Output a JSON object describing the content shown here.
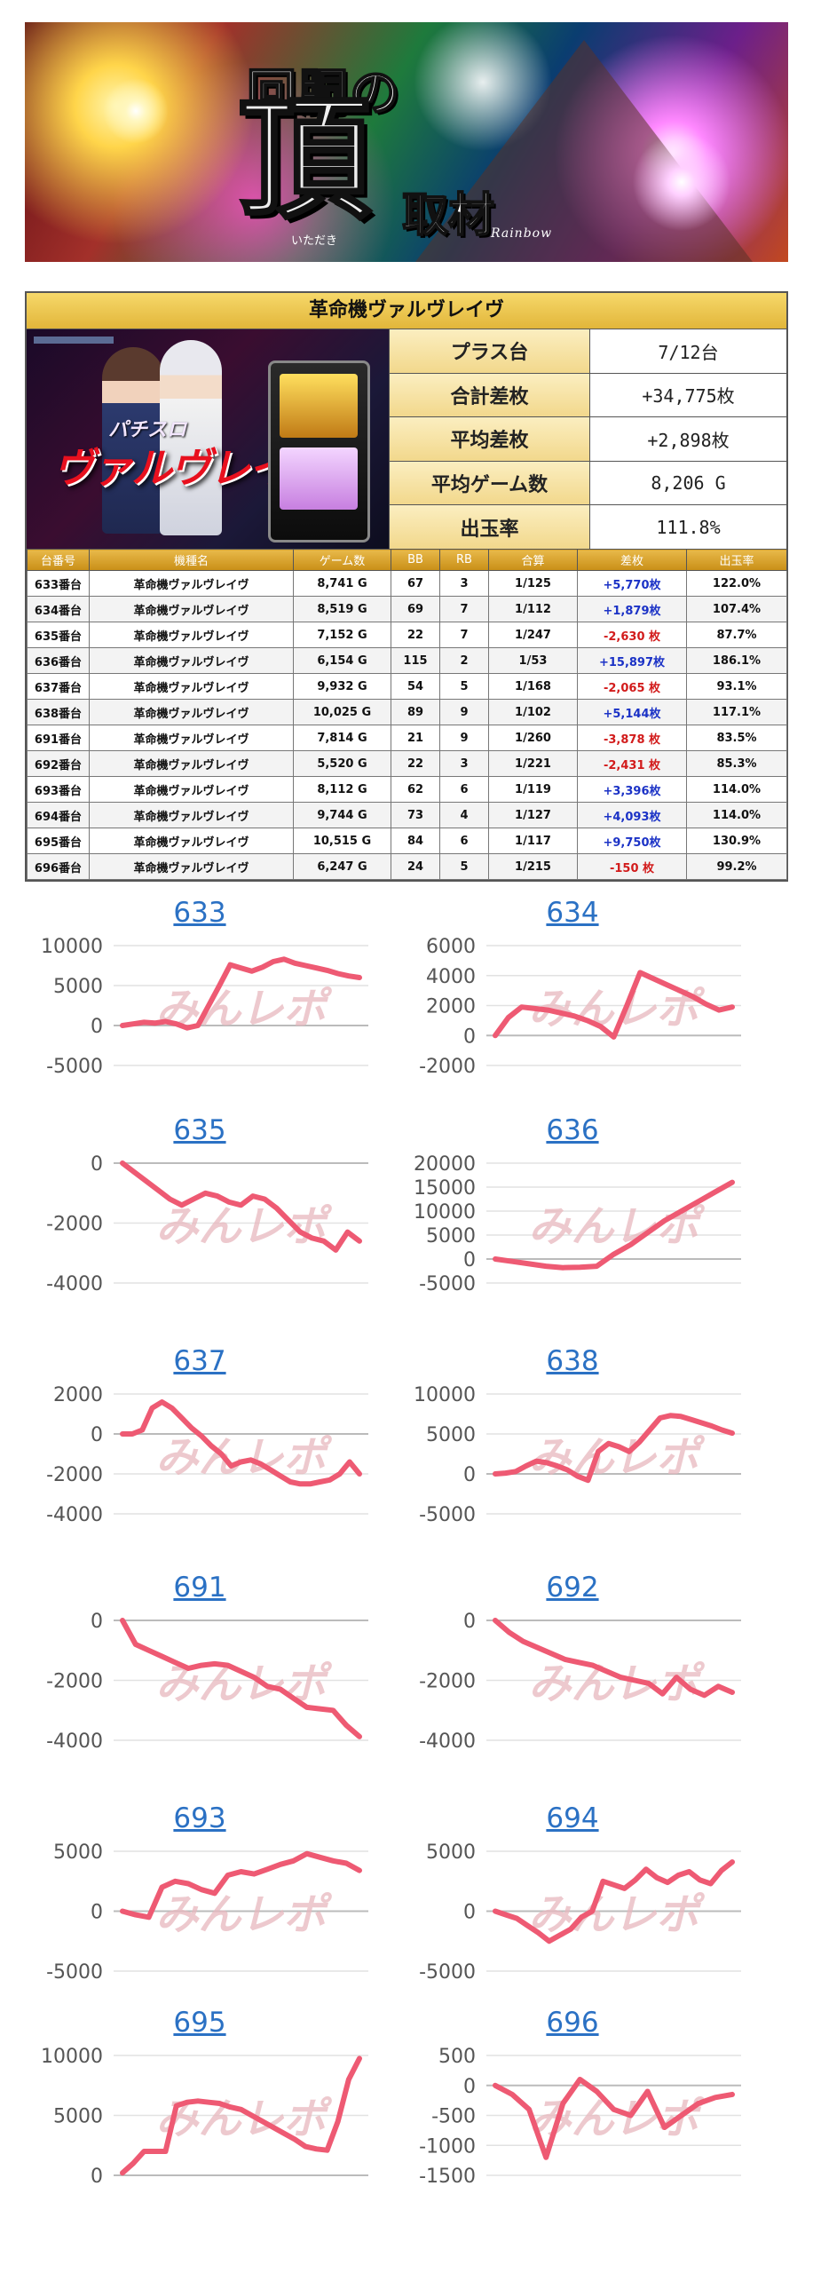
{
  "banner": {
    "line1": "回胴の",
    "line2": "頂",
    "line3": "取材",
    "ruby": "いただき",
    "rainbow": "Rainbow"
  },
  "summary": {
    "machine": "革命機ヴァルヴレイヴ",
    "promo_small": "パチスロ",
    "promo_big": "ヴァルヴレイヴ",
    "stats": [
      {
        "label": "プラス台",
        "value": "7/12台"
      },
      {
        "label": "合計差枚",
        "value": "+34,775枚"
      },
      {
        "label": "平均差枚",
        "value": "+2,898枚"
      },
      {
        "label": "平均ゲーム数",
        "value": "8,206 G"
      },
      {
        "label": "出玉率",
        "value": "111.8%"
      }
    ]
  },
  "table": {
    "headers": [
      "台番号",
      "機種名",
      "ゲーム数",
      "BB",
      "RB",
      "合算",
      "差枚",
      "出玉率"
    ],
    "rows": [
      {
        "no": "633番台",
        "name": "革命機ヴァルヴレイヴ",
        "games": "8,741 G",
        "bb": "67",
        "rb": "3",
        "total": "1/125",
        "diff": "+5,770枚",
        "rate": "122.0%",
        "sign": "plus"
      },
      {
        "no": "634番台",
        "name": "革命機ヴァルヴレイヴ",
        "games": "8,519 G",
        "bb": "69",
        "rb": "7",
        "total": "1/112",
        "diff": "+1,879枚",
        "rate": "107.4%",
        "sign": "plus"
      },
      {
        "no": "635番台",
        "name": "革命機ヴァルヴレイヴ",
        "games": "7,152 G",
        "bb": "22",
        "rb": "7",
        "total": "1/247",
        "diff": "-2,630 枚",
        "rate": "87.7%",
        "sign": "minus"
      },
      {
        "no": "636番台",
        "name": "革命機ヴァルヴレイヴ",
        "games": "6,154 G",
        "bb": "115",
        "rb": "2",
        "total": "1/53",
        "diff": "+15,897枚",
        "rate": "186.1%",
        "sign": "plus"
      },
      {
        "no": "637番台",
        "name": "革命機ヴァルヴレイヴ",
        "games": "9,932 G",
        "bb": "54",
        "rb": "5",
        "total": "1/168",
        "diff": "-2,065 枚",
        "rate": "93.1%",
        "sign": "minus"
      },
      {
        "no": "638番台",
        "name": "革命機ヴァルヴレイヴ",
        "games": "10,025 G",
        "bb": "89",
        "rb": "9",
        "total": "1/102",
        "diff": "+5,144枚",
        "rate": "117.1%",
        "sign": "plus"
      },
      {
        "no": "691番台",
        "name": "革命機ヴァルヴレイヴ",
        "games": "7,814 G",
        "bb": "21",
        "rb": "9",
        "total": "1/260",
        "diff": "-3,878 枚",
        "rate": "83.5%",
        "sign": "minus"
      },
      {
        "no": "692番台",
        "name": "革命機ヴァルヴレイヴ",
        "games": "5,520 G",
        "bb": "22",
        "rb": "3",
        "total": "1/221",
        "diff": "-2,431 枚",
        "rate": "85.3%",
        "sign": "minus"
      },
      {
        "no": "693番台",
        "name": "革命機ヴァルヴレイヴ",
        "games": "8,112 G",
        "bb": "62",
        "rb": "6",
        "total": "1/119",
        "diff": "+3,396枚",
        "rate": "114.0%",
        "sign": "plus"
      },
      {
        "no": "694番台",
        "name": "革命機ヴァルヴレイヴ",
        "games": "9,744 G",
        "bb": "73",
        "rb": "4",
        "total": "1/127",
        "diff": "+4,093枚",
        "rate": "114.0%",
        "sign": "plus"
      },
      {
        "no": "695番台",
        "name": "革命機ヴァルヴレイヴ",
        "games": "10,515 G",
        "bb": "84",
        "rb": "6",
        "total": "1/117",
        "diff": "+9,750枚",
        "rate": "130.9%",
        "sign": "plus"
      },
      {
        "no": "696番台",
        "name": "革命機ヴァルヴレイヴ",
        "games": "6,247 G",
        "bb": "24",
        "rb": "5",
        "total": "1/215",
        "diff": "-150 枚",
        "rate": "99.2%",
        "sign": "minus"
      }
    ]
  },
  "watermark": "みんレポ",
  "colors": {
    "line": "#ee5a73",
    "title_link": "#2b71c4",
    "plus": "#1b32c6",
    "minus": "#d21b1b",
    "header_gold": "#e2b63a"
  },
  "chart_data": [
    {
      "type": "line",
      "title": "633",
      "yticks": [
        10000,
        5000,
        0,
        -5000
      ],
      "ylim": [
        -5000,
        10000
      ],
      "values": [
        0,
        200,
        400,
        300,
        500,
        200,
        -300,
        0,
        2500,
        5000,
        7600,
        7200,
        6800,
        7300,
        8000,
        8300,
        7800,
        7500,
        7200,
        6900,
        6500,
        6200,
        6000
      ]
    },
    {
      "type": "line",
      "title": "634",
      "yticks": [
        6000,
        4000,
        2000,
        0,
        -2000
      ],
      "ylim": [
        -2000,
        6000
      ],
      "values": [
        0,
        1200,
        1900,
        1800,
        1700,
        1500,
        1300,
        1000,
        600,
        -100,
        2000,
        4200,
        3800,
        3400,
        3000,
        2600,
        2100,
        1700,
        1900
      ]
    },
    {
      "type": "line",
      "title": "635",
      "yticks": [
        0,
        -2000,
        -4000
      ],
      "ylim": [
        -4000,
        0
      ],
      "values": [
        0,
        -300,
        -600,
        -900,
        -1200,
        -1400,
        -1200,
        -1000,
        -1100,
        -1300,
        -1400,
        -1100,
        -1200,
        -1500,
        -1900,
        -2300,
        -2500,
        -2600,
        -2900,
        -2300,
        -2600
      ]
    },
    {
      "type": "line",
      "title": "636",
      "yticks": [
        20000,
        15000,
        10000,
        5000,
        0,
        -5000
      ],
      "ylim": [
        -5000,
        20000
      ],
      "values": [
        0,
        -500,
        -1000,
        -1500,
        -1800,
        -1700,
        -1500,
        1000,
        3000,
        5500,
        8000,
        10000,
        12000,
        14000,
        16000
      ]
    },
    {
      "type": "line",
      "title": "637",
      "yticks": [
        2000,
        0,
        -2000,
        -4000
      ],
      "ylim": [
        -4000,
        2000
      ],
      "values": [
        0,
        0,
        200,
        1300,
        1600,
        1300,
        800,
        300,
        -100,
        -600,
        -1000,
        -1600,
        -1400,
        -1300,
        -1500,
        -1800,
        -2100,
        -2400,
        -2500,
        -2500,
        -2400,
        -2300,
        -2000,
        -1400,
        -2000
      ]
    },
    {
      "type": "line",
      "title": "638",
      "yticks": [
        10000,
        5000,
        0,
        -5000
      ],
      "ylim": [
        -5000,
        10000
      ],
      "values": [
        0,
        100,
        300,
        1000,
        1600,
        1400,
        1000,
        500,
        -300,
        -800,
        2800,
        3800,
        3400,
        2800,
        4000,
        5500,
        7000,
        7300,
        7200,
        6800,
        6400,
        6000,
        5500,
        5100
      ]
    },
    {
      "type": "line",
      "title": "691",
      "yticks": [
        0,
        -2000,
        -4000
      ],
      "ylim": [
        -4000,
        0
      ],
      "values": [
        0,
        -800,
        -1000,
        -1200,
        -1400,
        -1600,
        -1500,
        -1450,
        -1500,
        -1700,
        -1900,
        -2200,
        -2300,
        -2600,
        -2900,
        -2950,
        -3000,
        -3500,
        -3880
      ]
    },
    {
      "type": "line",
      "title": "692",
      "yticks": [
        0,
        -2000,
        -4000
      ],
      "ylim": [
        -4000,
        0
      ],
      "values": [
        0,
        -400,
        -700,
        -900,
        -1100,
        -1300,
        -1400,
        -1500,
        -1700,
        -1900,
        -2000,
        -2100,
        -2450,
        -1900,
        -2300,
        -2500,
        -2200,
        -2400
      ]
    },
    {
      "type": "line",
      "title": "693",
      "yticks": [
        5000,
        0,
        -5000
      ],
      "ylim": [
        -5000,
        5000
      ],
      "values": [
        0,
        -300,
        -500,
        2000,
        2500,
        2300,
        1800,
        1500,
        3000,
        3300,
        3100,
        3500,
        3900,
        4200,
        4800,
        4500,
        4200,
        4000,
        3400
      ]
    },
    {
      "type": "line",
      "title": "694",
      "yticks": [
        5000,
        0,
        -5000
      ],
      "ylim": [
        -5000,
        5000
      ],
      "values": [
        0,
        -300,
        -600,
        -1200,
        -1800,
        -2500,
        -2000,
        -1500,
        -500,
        0,
        2500,
        2200,
        1900,
        2600,
        3500,
        2800,
        2400,
        3000,
        3300,
        2600,
        2300,
        3400,
        4100
      ]
    },
    {
      "type": "line",
      "title": "695",
      "yticks": [
        10000,
        5000,
        0
      ],
      "ylim": [
        0,
        10000
      ],
      "values": [
        200,
        1000,
        2000,
        2000,
        2000,
        5800,
        6100,
        6200,
        6100,
        6000,
        5700,
        5500,
        5000,
        4500,
        4000,
        3500,
        3000,
        2400,
        2200,
        2100,
        4500,
        8000,
        9750
      ]
    },
    {
      "type": "line",
      "title": "696",
      "yticks": [
        500,
        0,
        -500,
        -1000,
        -1500
      ],
      "ylim": [
        -1500,
        500
      ],
      "values": [
        0,
        -150,
        -400,
        -1200,
        -300,
        100,
        -100,
        -400,
        -500,
        -100,
        -700,
        -500,
        -300,
        -200,
        -150
      ]
    }
  ]
}
